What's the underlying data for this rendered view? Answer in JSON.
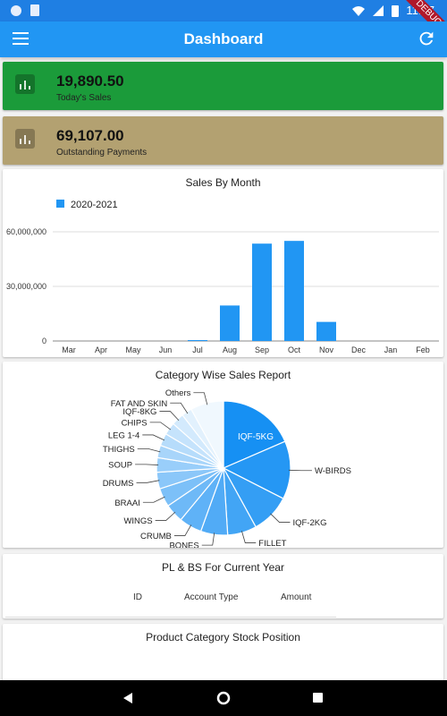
{
  "status_bar": {
    "time": "11:17"
  },
  "debug_banner": "DEBUG",
  "app_bar": {
    "title": "Dashboard",
    "menu_icon": "menu-icon",
    "refresh_icon": "refresh-icon"
  },
  "summary_cards": [
    {
      "value": "19,890.50",
      "label": "Today's Sales",
      "color": "#1b9b3a",
      "icon": "bar-chart-icon"
    },
    {
      "value": "69,107.00",
      "label": "Outstanding Payments",
      "color": "#b3a171",
      "icon": "bar-chart-icon"
    }
  ],
  "sales_chart": {
    "title": "Sales By Month",
    "chart_data": {
      "type": "bar",
      "title": "Sales By Month",
      "categories": [
        "Mar",
        "Apr",
        "May",
        "Jun",
        "Jul",
        "Aug",
        "Sep",
        "Oct",
        "Nov",
        "Dec",
        "Jan",
        "Feb"
      ],
      "series": [
        {
          "name": "2020-2021",
          "color": "#2196f3",
          "values": [
            0,
            0,
            0,
            0,
            500000,
            19500000,
            53500000,
            55000000,
            10500000,
            0,
            0,
            0
          ]
        }
      ],
      "ylim": [
        0,
        60000000
      ],
      "yticks": [
        "0",
        "30,000,000",
        "60,000,000"
      ],
      "grid": true,
      "legend": "top-left"
    }
  },
  "category_chart": {
    "title": "Category Wise Sales Report",
    "chart_data": {
      "type": "pie",
      "title": "Category Wise Sales Report",
      "slices": [
        {
          "label": "IQF-5KG",
          "value": 18.5
        },
        {
          "label": "W-BIRDS",
          "value": 14.0
        },
        {
          "label": "IQF-2KG",
          "value": 9.5
        },
        {
          "label": "FILLET",
          "value": 7.0
        },
        {
          "label": "BONES",
          "value": 6.5
        },
        {
          "label": "CRUMB",
          "value": 5.5
        },
        {
          "label": "WINGS",
          "value": 4.5
        },
        {
          "label": "BRAAI",
          "value": 4.5
        },
        {
          "label": "DRUMS",
          "value": 4.0
        },
        {
          "label": "SOUP",
          "value": 3.5
        },
        {
          "label": "THIGHS",
          "value": 3.0
        },
        {
          "label": "LEG 1-4",
          "value": 3.0
        },
        {
          "label": "CHIPS",
          "value": 3.0
        },
        {
          "label": "IQF-8KG",
          "value": 3.0
        },
        {
          "label": "FAT AND SKIN",
          "value": 2.5
        },
        {
          "label": "Others",
          "value": 8.0
        }
      ]
    }
  },
  "pl_bs": {
    "title": "PL & BS For Current Year",
    "columns": [
      "ID",
      "Account Type",
      "Amount"
    ]
  },
  "stock": {
    "title": "Product Category Stock Position"
  }
}
